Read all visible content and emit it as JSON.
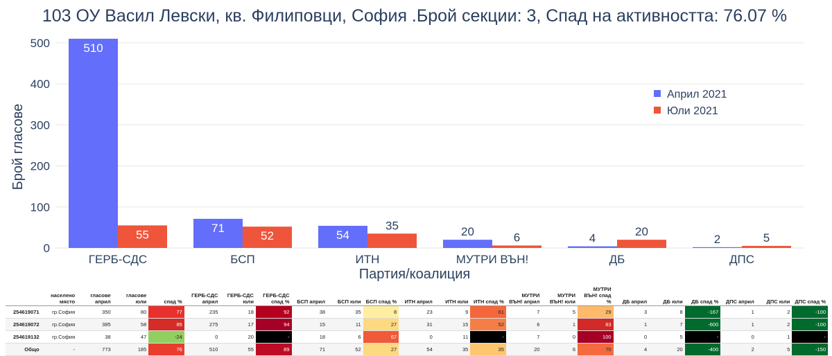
{
  "chart_data": {
    "type": "bar",
    "title": "103 ОУ Васил Левски, кв. Филиповци, София .Брой секции: 3,  Спад на активността: 76.07 %",
    "xlabel": "Партия/коалиция",
    "ylabel": "Брой гласове",
    "categories": [
      "ГЕРБ-СДС",
      "БСП",
      "ИТН",
      "МУТРИ ВЪН!",
      "ДБ",
      "ДПС"
    ],
    "series": [
      {
        "name": "Април 2021",
        "color": "#636efa",
        "values": [
          510,
          71,
          54,
          20,
          4,
          2
        ]
      },
      {
        "name": "Юли 2021",
        "color": "#ef553b",
        "values": [
          55,
          52,
          35,
          6,
          20,
          5
        ]
      }
    ],
    "ylim": [
      0,
      520
    ],
    "yticks": [
      0,
      100,
      200,
      300,
      400,
      500
    ],
    "grid": true,
    "legend": "top-right"
  },
  "table": {
    "headers": [
      "",
      "населено място",
      "гласове април",
      "гласове юли",
      "спад %",
      "ГЕРБ-СДС април",
      "ГЕРБ-СДС юли",
      "ГЕРБ-СДС спад %",
      "БСП април",
      "БСП юли",
      "БСП спад %",
      "ИТН април",
      "ИТН юли",
      "ИТН спад %",
      "МУТРИ ВЪН! април",
      "МУТРИ ВЪН! юли",
      "МУТРИ ВЪН! спад %",
      "ДБ април",
      "ДБ юли",
      "ДБ спад %",
      "ДПС април",
      "ДПС юли",
      "ДПС спад %"
    ],
    "rows": [
      [
        "254619071",
        "гр.София",
        "350",
        "80",
        "77",
        "235",
        "18",
        "92",
        "38",
        "35",
        "8",
        "23",
        "9",
        "61",
        "7",
        "5",
        "29",
        "3",
        "8",
        "-167",
        "1",
        "2",
        "-100"
      ],
      [
        "254619072",
        "гр.София",
        "385",
        "58",
        "85",
        "275",
        "17",
        "94",
        "15",
        "11",
        "27",
        "31",
        "15",
        "52",
        "6",
        "1",
        "83",
        "1",
        "7",
        "-600",
        "1",
        "2",
        "-100"
      ],
      [
        "254619132",
        "гр.София",
        "38",
        "47",
        "-24",
        "0",
        "20",
        "-",
        "18",
        "6",
        "67",
        "0",
        "11",
        "-",
        "7",
        "0",
        "100",
        "0",
        "5",
        "-",
        "0",
        "1",
        "-"
      ],
      [
        "Общо",
        "-",
        "773",
        "185",
        "76",
        "510",
        "55",
        "89",
        "71",
        "52",
        "27",
        "54",
        "35",
        "35",
        "20",
        "6",
        "70",
        "4",
        "20",
        "-400",
        "2",
        "5",
        "-150"
      ]
    ],
    "cell_colors": [
      {
        "4": "#e8312c",
        "7": "#b5001f",
        "10": "#ffeea0",
        "13": "#f4673c",
        "16": "#fdba6a",
        "19": "#006b2d",
        "22": "#006b2d"
      },
      {
        "4": "#d42c26",
        "7": "#a50026",
        "10": "#fdd982",
        "13": "#f57e47",
        "16": "#d22a26",
        "19": "#006b2d",
        "22": "#006b2d"
      },
      {
        "4": "#91cf60",
        "7": "#000000",
        "10": "#f15a38",
        "13": "#000000",
        "16": "#a50026",
        "19": "#000000",
        "22": "#000000"
      },
      {
        "4": "#ea3d2d",
        "7": "#bd0b25",
        "10": "#fdd982",
        "13": "#fdc66f",
        "16": "#f46a3e",
        "19": "#006b2d",
        "22": "#006b2d"
      }
    ]
  }
}
